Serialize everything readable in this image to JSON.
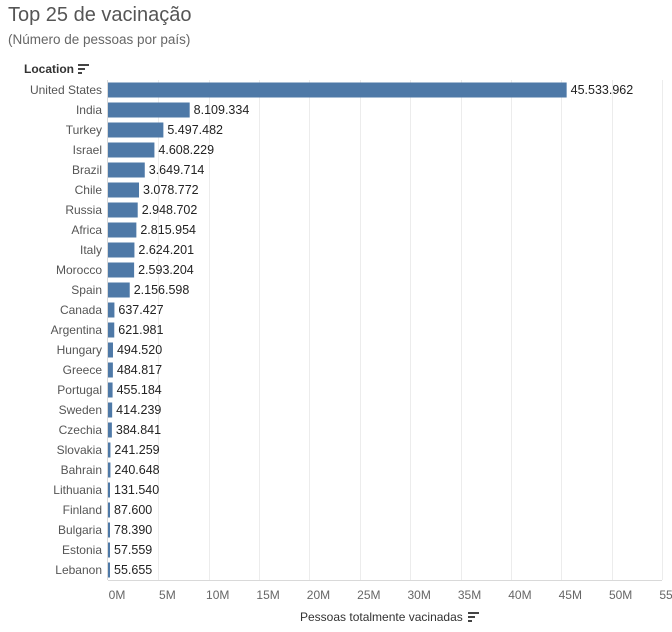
{
  "title": "Top 25 de vacinação",
  "subtitle": "(Número de pessoas por país)",
  "row_header": "Location",
  "chart_data": {
    "type": "bar",
    "orientation": "horizontal",
    "categories": [
      "United States",
      "India",
      "Turkey",
      "Israel",
      "Brazil",
      "Chile",
      "Russia",
      "Africa",
      "Italy",
      "Morocco",
      "Spain",
      "Canada",
      "Argentina",
      "Hungary",
      "Greece",
      "Portugal",
      "Sweden",
      "Czechia",
      "Slovakia",
      "Bahrain",
      "Lithuania",
      "Finland",
      "Bulgaria",
      "Estonia",
      "Lebanon"
    ],
    "values": [
      45533962,
      8109334,
      5497482,
      4608229,
      3649714,
      3078772,
      2948702,
      2815954,
      2624201,
      2593204,
      2156598,
      637427,
      621981,
      494520,
      484817,
      455184,
      414239,
      384841,
      241259,
      240648,
      131540,
      87600,
      78390,
      57559,
      55655
    ],
    "value_labels": [
      "45.533.962",
      "8.109.334",
      "5.497.482",
      "4.608.229",
      "3.649.714",
      "3.078.772",
      "2.948.702",
      "2.815.954",
      "2.624.201",
      "2.593.204",
      "2.156.598",
      "637.427",
      "621.981",
      "494.520",
      "484.817",
      "455.184",
      "414.239",
      "384.841",
      "241.259",
      "240.648",
      "131.540",
      "87.600",
      "78.390",
      "57.559",
      "55.655"
    ],
    "xlabel": "Pessoas totalmente vacinadas",
    "x_ticks": [
      0,
      5000000,
      10000000,
      15000000,
      20000000,
      25000000,
      30000000,
      35000000,
      40000000,
      45000000,
      50000000,
      55000000
    ],
    "x_tick_labels": [
      "0M",
      "5M",
      "10M",
      "15M",
      "20M",
      "25M",
      "30M",
      "35M",
      "40M",
      "45M",
      "50M",
      "55M"
    ],
    "xlim": [
      0,
      55000000
    ],
    "grid": true,
    "bar_color": "#4e79a7"
  }
}
